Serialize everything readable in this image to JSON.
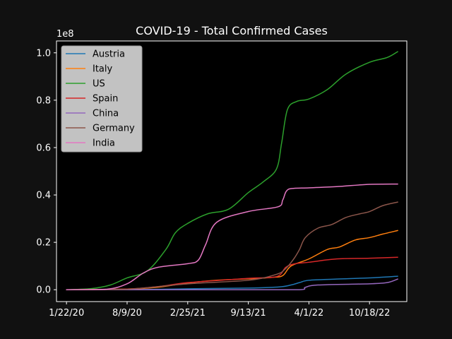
{
  "chart_data": {
    "type": "line",
    "title": "COVID-19 - Total Confirmed Cases",
    "xlabel": "",
    "ylabel": "",
    "y_offset_label": "1e8",
    "x_tick_labels": [
      "1/22/20",
      "8/9/20",
      "2/25/21",
      "9/13/21",
      "4/1/22",
      "10/18/22"
    ],
    "y_tick_labels": [
      "0.0",
      "0.2",
      "0.4",
      "0.6",
      "0.8",
      "1.0"
    ],
    "y_tick_values": [
      0.0,
      0.2,
      0.4,
      0.6,
      0.8,
      1.0
    ],
    "xlim": [
      "2019-12-20",
      "2023-02-18"
    ],
    "ylim": [
      -0.05,
      1.05
    ],
    "grid": false,
    "legend_position": "top-left",
    "series": [
      {
        "name": "Austria",
        "color": "#1f77b4",
        "x": [
          "2020-01-22",
          "2020-08-09",
          "2021-02-25",
          "2021-09-13",
          "2021-12-25",
          "2022-02-01",
          "2022-03-01",
          "2022-04-01",
          "2022-07-01",
          "2022-10-18",
          "2023-01-19"
        ],
        "values": [
          0.0,
          0.0,
          0.004,
          0.007,
          0.012,
          0.02,
          0.03,
          0.04,
          0.045,
          0.05,
          0.057
        ]
      },
      {
        "name": "Italy",
        "color": "#ff7f0e",
        "x": [
          "2020-01-22",
          "2020-08-09",
          "2020-11-15",
          "2021-02-25",
          "2021-06-01",
          "2021-09-13",
          "2021-12-01",
          "2022-01-05",
          "2022-02-01",
          "2022-04-01",
          "2022-06-01",
          "2022-07-10",
          "2022-09-01",
          "2022-10-18",
          "2022-12-01",
          "2023-01-19"
        ],
        "values": [
          0.0,
          0.003,
          0.01,
          0.028,
          0.04,
          0.046,
          0.052,
          0.06,
          0.1,
          0.13,
          0.17,
          0.18,
          0.21,
          0.22,
          0.235,
          0.25
        ]
      },
      {
        "name": "US",
        "color": "#2ca02c",
        "x": [
          "2020-01-22",
          "2020-04-15",
          "2020-06-15",
          "2020-08-09",
          "2020-10-15",
          "2020-12-15",
          "2021-01-15",
          "2021-02-25",
          "2021-05-01",
          "2021-07-10",
          "2021-09-13",
          "2021-11-01",
          "2021-12-15",
          "2022-01-01",
          "2022-01-20",
          "2022-02-20",
          "2022-04-01",
          "2022-06-01",
          "2022-08-01",
          "2022-10-18",
          "2022-12-15",
          "2023-01-19"
        ],
        "values": [
          0.0,
          0.005,
          0.02,
          0.05,
          0.08,
          0.17,
          0.24,
          0.28,
          0.32,
          0.34,
          0.41,
          0.455,
          0.51,
          0.62,
          0.76,
          0.795,
          0.805,
          0.845,
          0.91,
          0.96,
          0.98,
          1.005
        ]
      },
      {
        "name": "Spain",
        "color": "#d62728",
        "x": [
          "2020-01-22",
          "2020-08-09",
          "2020-12-01",
          "2021-02-25",
          "2021-09-13",
          "2021-12-15",
          "2022-01-15",
          "2022-02-15",
          "2022-04-01",
          "2022-07-01",
          "2022-10-18",
          "2023-01-19"
        ],
        "values": [
          0.0,
          0.003,
          0.015,
          0.03,
          0.048,
          0.055,
          0.095,
          0.11,
          0.116,
          0.13,
          0.133,
          0.137
        ]
      },
      {
        "name": "China",
        "color": "#9467bd",
        "x": [
          "2020-01-22",
          "2021-09-13",
          "2022-03-01",
          "2022-03-20",
          "2022-05-01",
          "2022-10-18",
          "2022-12-15",
          "2023-01-19"
        ],
        "values": [
          0.0,
          0.0,
          0.0,
          0.01,
          0.02,
          0.025,
          0.03,
          0.045
        ]
      },
      {
        "name": "Germany",
        "color": "#8c564b",
        "x": [
          "2020-01-22",
          "2020-08-09",
          "2021-02-25",
          "2021-09-13",
          "2021-12-15",
          "2022-01-15",
          "2022-02-10",
          "2022-03-01",
          "2022-03-20",
          "2022-05-01",
          "2022-06-15",
          "2022-08-01",
          "2022-09-15",
          "2022-10-18",
          "2022-12-01",
          "2023-01-19"
        ],
        "values": [
          0.0,
          0.002,
          0.025,
          0.04,
          0.065,
          0.09,
          0.13,
          0.17,
          0.22,
          0.26,
          0.275,
          0.305,
          0.32,
          0.33,
          0.355,
          0.37
        ]
      },
      {
        "name": "India",
        "color": "#e377c2",
        "x": [
          "2020-01-22",
          "2020-06-01",
          "2020-08-09",
          "2020-10-01",
          "2020-11-20",
          "2021-02-25",
          "2021-04-01",
          "2021-04-25",
          "2021-06-01",
          "2021-09-13",
          "2021-12-20",
          "2022-01-05",
          "2022-01-25",
          "2022-04-01",
          "2022-07-01",
          "2022-10-18",
          "2023-01-19"
        ],
        "values": [
          0.0,
          0.002,
          0.025,
          0.07,
          0.095,
          0.11,
          0.125,
          0.19,
          0.285,
          0.33,
          0.35,
          0.38,
          0.425,
          0.43,
          0.435,
          0.445,
          0.446
        ]
      }
    ]
  }
}
